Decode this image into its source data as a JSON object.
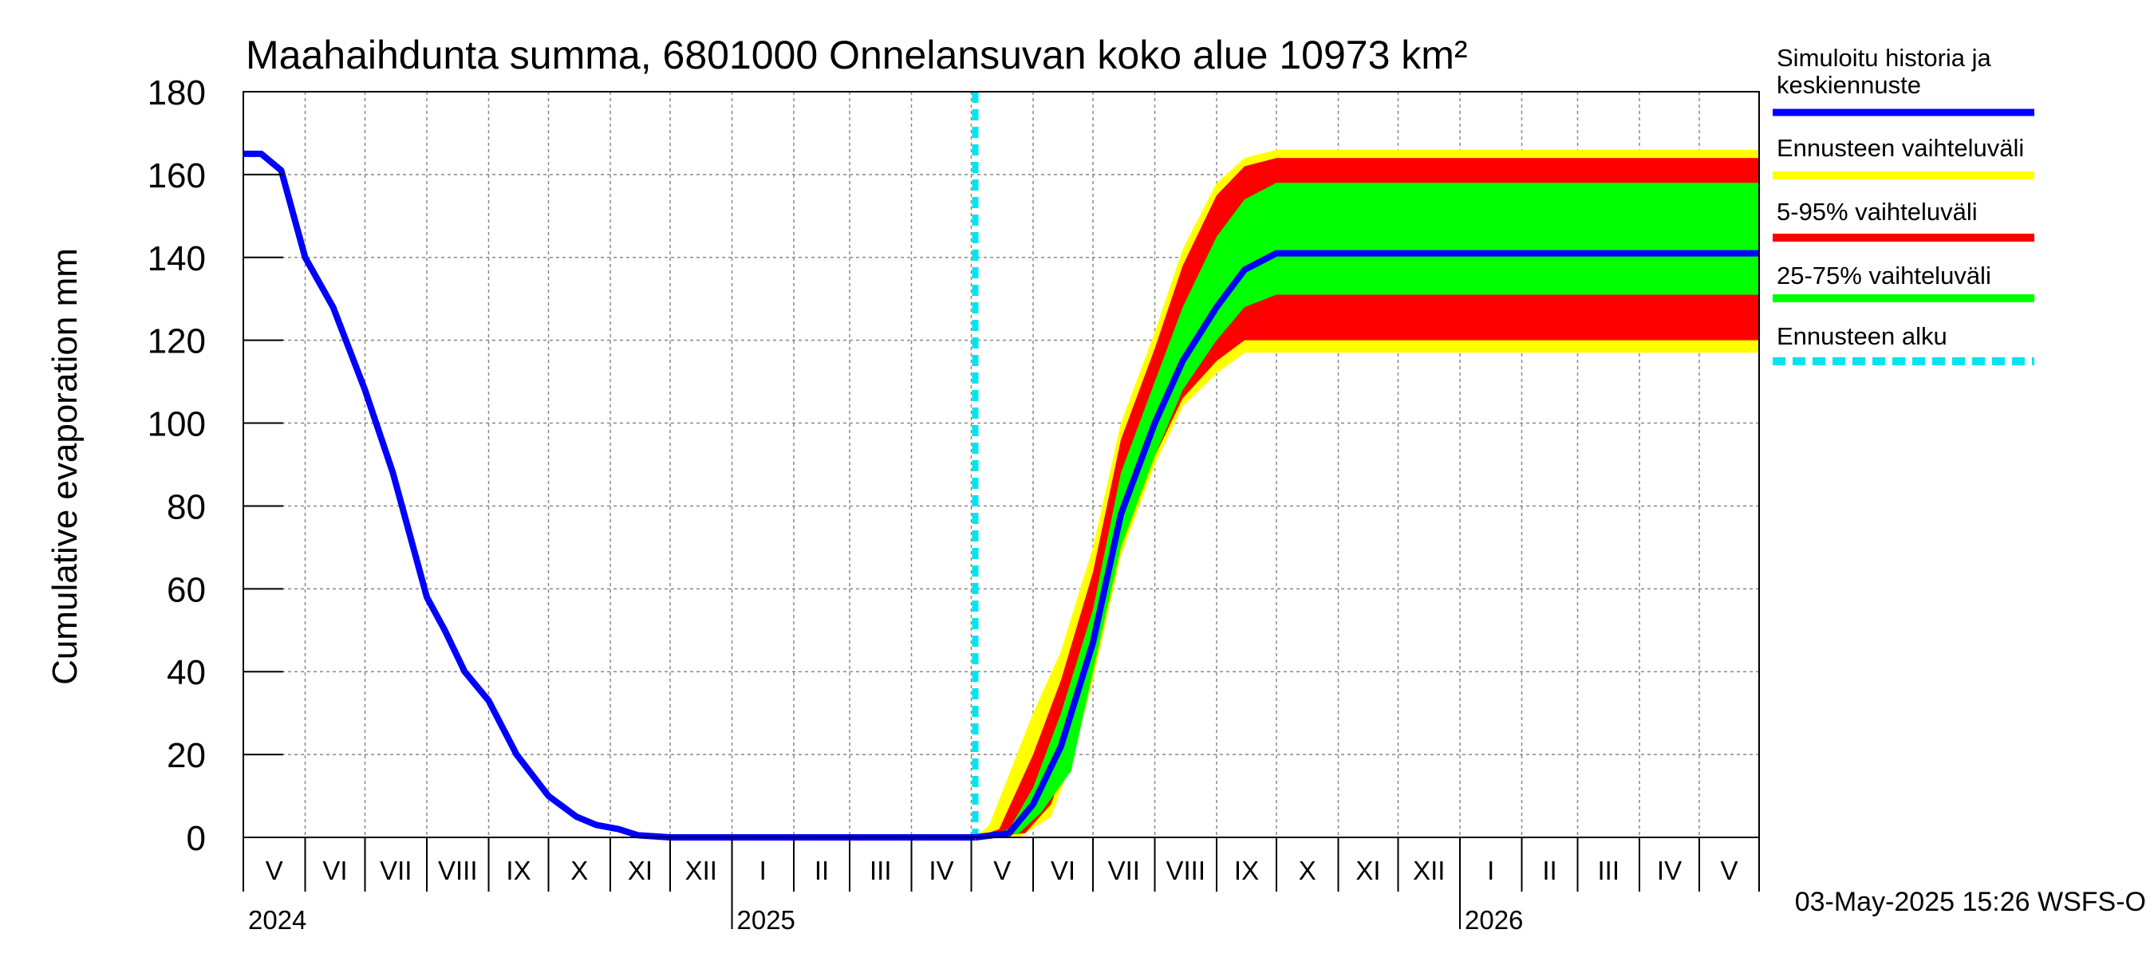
{
  "chart_data": {
    "type": "line",
    "title": "Maahaihdunta summa, 6801000 Onnelansuvan koko alue 10973 km²",
    "ylabel": "Cumulative evaporation   mm",
    "ylim": [
      0,
      180
    ],
    "yticks": [
      0,
      20,
      40,
      60,
      80,
      100,
      120,
      140,
      160,
      180
    ],
    "grid": true,
    "legend_position": "right",
    "x_range": [
      "2024-05-01",
      "2026-05-31"
    ],
    "month_labels": [
      "V",
      "VI",
      "VII",
      "VIII",
      "IX",
      "X",
      "XI",
      "XII",
      "I",
      "II",
      "III",
      "IV",
      "V",
      "VI",
      "VII",
      "VIII",
      "IX",
      "X",
      "XI",
      "XII",
      "I",
      "II",
      "III",
      "IV",
      "V"
    ],
    "year_labels": [
      {
        "label": "2024",
        "date": "2024-05-01"
      },
      {
        "label": "2025",
        "date": "2025-01-01"
      },
      {
        "label": "2026",
        "date": "2026-01-01"
      }
    ],
    "forecast_start": "2025-05-03",
    "timestamp": "03-May-2025 15:26 WSFS-O",
    "colors": {
      "history": "#0000ff",
      "range_full": "#ffff00",
      "range_5_95": "#ff0000",
      "range_25_75": "#00ff00",
      "forecast_start": "#00e5ee"
    },
    "legend": [
      {
        "label": "Simuloitu historia ja keskiennuste",
        "color": "#0000ff",
        "style": "solid"
      },
      {
        "label": "Ennusteen vaihteluväli",
        "color": "#ffff00",
        "style": "solid"
      },
      {
        "label": "5-95% vaihteluväli",
        "color": "#ff0000",
        "style": "solid"
      },
      {
        "label": "25-75% vaihteluväli",
        "color": "#00ff00",
        "style": "solid"
      },
      {
        "label": "Ennusteen alku",
        "color": "#00e5ee",
        "style": "dashed"
      }
    ],
    "history": [
      [
        "2024-05-01",
        165
      ],
      [
        "2024-05-10",
        165
      ],
      [
        "2024-05-15",
        163
      ],
      [
        "2024-05-20",
        161
      ],
      [
        "2024-06-01",
        140
      ],
      [
        "2024-06-15",
        128
      ],
      [
        "2024-07-01",
        108
      ],
      [
        "2024-07-15",
        88
      ],
      [
        "2024-08-01",
        58
      ],
      [
        "2024-08-10",
        50
      ],
      [
        "2024-08-20",
        40
      ],
      [
        "2024-09-01",
        33
      ],
      [
        "2024-09-15",
        20
      ],
      [
        "2024-10-01",
        10
      ],
      [
        "2024-10-15",
        5
      ],
      [
        "2024-10-25",
        3
      ],
      [
        "2024-11-05",
        2
      ],
      [
        "2024-11-15",
        0.5
      ],
      [
        "2024-12-01",
        0
      ],
      [
        "2025-05-03",
        0
      ]
    ],
    "median": [
      [
        "2025-05-03",
        0
      ],
      [
        "2025-05-20",
        1
      ],
      [
        "2025-06-01",
        8
      ],
      [
        "2025-06-15",
        22
      ],
      [
        "2025-07-01",
        47
      ],
      [
        "2025-07-15",
        78
      ],
      [
        "2025-08-01",
        100
      ],
      [
        "2025-08-15",
        115
      ],
      [
        "2025-09-01",
        128
      ],
      [
        "2025-09-15",
        137
      ],
      [
        "2025-10-01",
        141
      ],
      [
        "2026-05-31",
        141
      ]
    ],
    "band_full": {
      "upper": [
        [
          "2025-05-03",
          0
        ],
        [
          "2025-05-10",
          3
        ],
        [
          "2025-06-01",
          30
        ],
        [
          "2025-06-15",
          45
        ],
        [
          "2025-07-01",
          70
        ],
        [
          "2025-07-15",
          100
        ],
        [
          "2025-08-01",
          122
        ],
        [
          "2025-08-15",
          142
        ],
        [
          "2025-09-01",
          158
        ],
        [
          "2025-09-15",
          164
        ],
        [
          "2025-10-01",
          166
        ],
        [
          "2026-05-31",
          166
        ]
      ],
      "lower": [
        [
          "2025-05-03",
          0
        ],
        [
          "2025-05-25",
          0
        ],
        [
          "2025-06-10",
          5
        ],
        [
          "2025-06-20",
          18
        ],
        [
          "2025-07-01",
          38
        ],
        [
          "2025-07-15",
          68
        ],
        [
          "2025-08-01",
          90
        ],
        [
          "2025-08-15",
          104
        ],
        [
          "2025-09-01",
          112
        ],
        [
          "2025-09-15",
          117
        ],
        [
          "2025-10-01",
          117
        ],
        [
          "2026-05-31",
          117
        ]
      ]
    },
    "band_5_95": {
      "upper": [
        [
          "2025-05-03",
          0
        ],
        [
          "2025-05-15",
          2
        ],
        [
          "2025-06-01",
          20
        ],
        [
          "2025-06-15",
          38
        ],
        [
          "2025-07-01",
          64
        ],
        [
          "2025-07-15",
          96
        ],
        [
          "2025-08-01",
          118
        ],
        [
          "2025-08-15",
          138
        ],
        [
          "2025-09-01",
          155
        ],
        [
          "2025-09-15",
          162
        ],
        [
          "2025-10-01",
          164
        ],
        [
          "2026-05-31",
          164
        ]
      ],
      "lower": [
        [
          "2025-05-03",
          0
        ],
        [
          "2025-05-28",
          1
        ],
        [
          "2025-06-10",
          8
        ],
        [
          "2025-06-20",
          22
        ],
        [
          "2025-07-01",
          42
        ],
        [
          "2025-07-15",
          72
        ],
        [
          "2025-08-01",
          92
        ],
        [
          "2025-08-15",
          106
        ],
        [
          "2025-09-01",
          115
        ],
        [
          "2025-09-15",
          120
        ],
        [
          "2025-10-01",
          120
        ],
        [
          "2026-05-31",
          120
        ]
      ]
    },
    "band_25_75": {
      "upper": [
        [
          "2025-05-03",
          0
        ],
        [
          "2025-05-20",
          2
        ],
        [
          "2025-06-01",
          12
        ],
        [
          "2025-06-15",
          30
        ],
        [
          "2025-07-01",
          55
        ],
        [
          "2025-07-15",
          88
        ],
        [
          "2025-08-01",
          110
        ],
        [
          "2025-08-15",
          128
        ],
        [
          "2025-09-01",
          145
        ],
        [
          "2025-09-15",
          154
        ],
        [
          "2025-10-01",
          158
        ],
        [
          "2026-05-31",
          158
        ]
      ],
      "lower": [
        [
          "2025-05-03",
          0
        ],
        [
          "2025-05-25",
          1
        ],
        [
          "2025-06-05",
          6
        ],
        [
          "2025-06-20",
          16
        ],
        [
          "2025-07-01",
          40
        ],
        [
          "2025-07-15",
          70
        ],
        [
          "2025-08-01",
          92
        ],
        [
          "2025-08-15",
          108
        ],
        [
          "2025-09-01",
          120
        ],
        [
          "2025-09-15",
          128
        ],
        [
          "2025-10-01",
          131
        ],
        [
          "2026-05-31",
          131
        ]
      ]
    }
  }
}
